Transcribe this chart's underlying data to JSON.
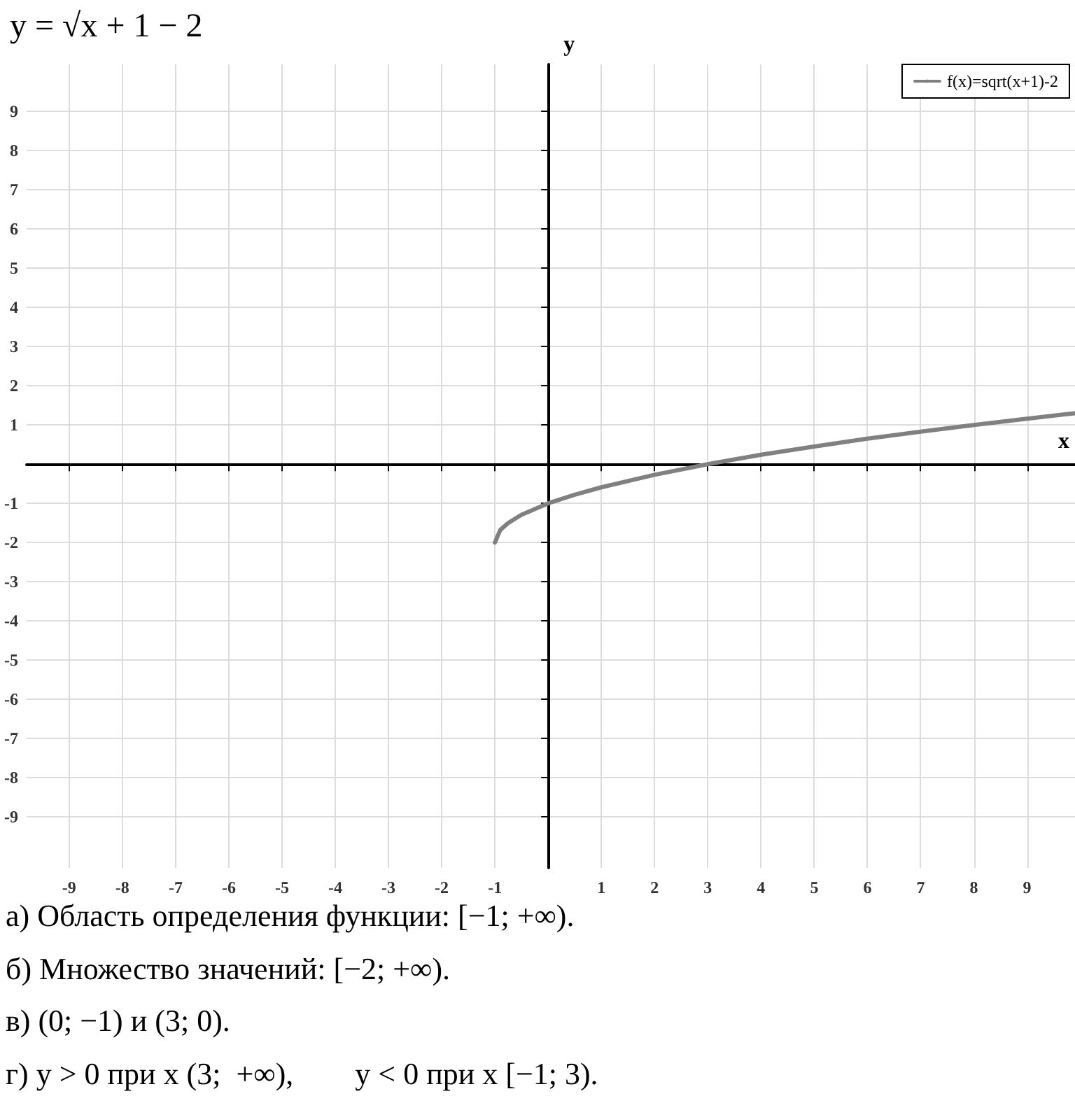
{
  "chart_data": {
    "type": "line",
    "title": "y = √x + 1 − 2",
    "xlabel": "x",
    "ylabel": "y",
    "series": [
      {
        "name": "f(x)=sqrt(x+1)-2",
        "color": "#808080",
        "x": [
          -1,
          -0.9,
          -0.75,
          -0.5,
          0,
          0.5,
          1,
          2,
          3,
          4,
          5,
          6,
          7,
          8,
          9,
          9.9
        ],
        "values": [
          -2,
          -1.68,
          -1.5,
          -1.29,
          -1,
          -0.78,
          -0.59,
          -0.27,
          0,
          0.24,
          0.45,
          0.65,
          0.83,
          1,
          1.16,
          1.3
        ]
      }
    ],
    "xlim": [
      -9.8,
      9.9
    ],
    "ylim": [
      -10.3,
      10.2
    ],
    "xticks": [
      -9,
      -8,
      -7,
      -6,
      -5,
      -4,
      -3,
      -2,
      -1,
      1,
      2,
      3,
      4,
      5,
      6,
      7,
      8,
      9
    ],
    "yticks": [
      -9,
      -8,
      -7,
      -6,
      -5,
      -4,
      -3,
      -2,
      -1,
      1,
      2,
      3,
      4,
      5,
      6,
      7,
      8,
      9
    ],
    "grid": true,
    "legend": "top right",
    "marker": "none",
    "line_style": "solid",
    "annotations": [
      "а) Область определения функции: [−1; +∞).",
      "б) Множество значений: [−2; +∞).",
      "в) (0; −1) и (3; 0).",
      "г) y > 0 при x (3;  +∞),        y < 0 при x [−1; 3)."
    ]
  }
}
